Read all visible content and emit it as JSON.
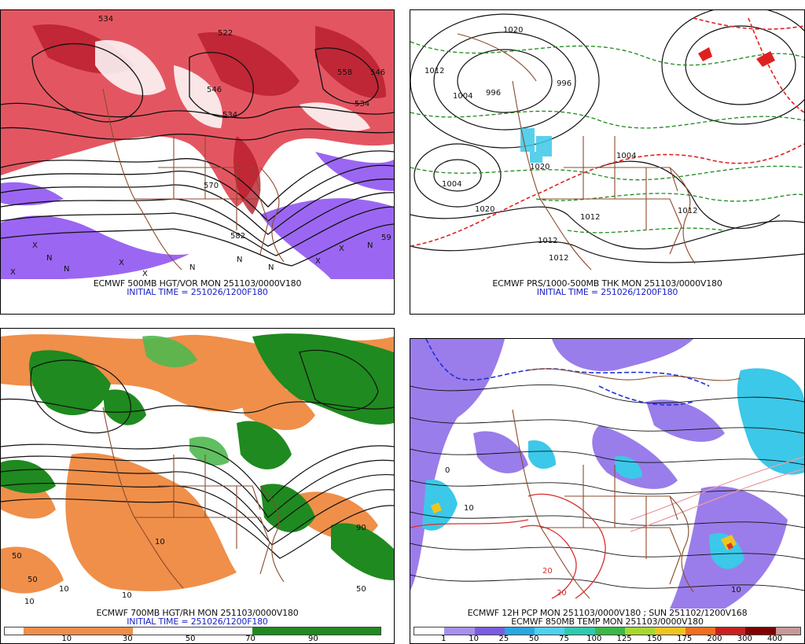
{
  "panels": {
    "top_left": {
      "title": "ECMWF 500MB HGT/VOR MON 251103/0000V180",
      "init": "INITIAL TIME = 251026/1200F180",
      "contour_labels": [
        "534",
        "522",
        "546",
        "534",
        "558",
        "570",
        "582",
        "534",
        "546",
        "59"
      ]
    },
    "top_right": {
      "title": "ECMWF PRS/1000-500MB THK MON 251103/0000V180",
      "init": "INITIAL TIME = 251026/1200F180",
      "contour_labels": [
        "1020",
        "1012",
        "1004",
        "996",
        "996",
        "1004",
        "1020",
        "1012",
        "1012",
        "1020",
        "1012",
        "1012",
        "1004"
      ]
    },
    "bottom_left": {
      "title": "ECMWF 700MB HGT/RH MON 251103/0000V180",
      "init": "INITIAL TIME = 251026/1200F180",
      "contour_labels": [
        "10",
        "10",
        "50",
        "10",
        "50",
        "10",
        "90",
        "50"
      ],
      "colorbar_labels": [
        "10",
        "30",
        "50",
        "70",
        "90"
      ]
    },
    "bottom_right": {
      "title": "ECMWF 12H PCP MON 251103/0000V180 ; SUN 251102/1200V168",
      "subtitle": "ECMWF 850MB TEMP MON 251103/0000V180",
      "contour_labels": [
        "0",
        "10",
        "20",
        "20",
        "10"
      ],
      "colorbar_labels": [
        "1",
        "10",
        "25",
        "50",
        "75",
        "100",
        "125",
        "150",
        "175",
        "200",
        "300",
        "400"
      ]
    }
  },
  "colors": {
    "vorticity_red": "#d8313f",
    "vorticity_purple": "#8a4cf0",
    "coast_brown": "#8b4a2b",
    "rh_dry_orange": "#ef8f4a",
    "rh_moist_green": "#1f8a1f",
    "pcp_purple": "#8f6fe8",
    "pcp_cyan": "#3cc8e8",
    "thickness_green": "#1e8a1e",
    "thickness_red": "#e02020"
  }
}
